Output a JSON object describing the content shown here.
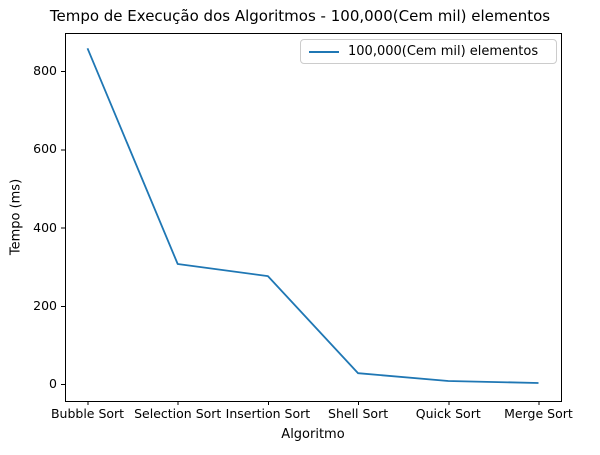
{
  "chart_data": {
    "type": "line",
    "title": "Tempo de Execução dos Algoritmos - 100,000(Cem mil) elementos",
    "xlabel": "Algoritmo",
    "ylabel": "Tempo (ms)",
    "categories": [
      "Bubble Sort",
      "Selection Sort",
      "Insertion Sort",
      "Shell Sort",
      "Quick Sort",
      "Merge Sort"
    ],
    "series": [
      {
        "name": "100,000(Cem mil) elementos",
        "values": [
          858,
          307,
          276,
          28,
          8,
          3
        ],
        "color": "#1f77b4"
      }
    ],
    "yticks": [
      0,
      200,
      400,
      600,
      800
    ],
    "ylim": [
      -43,
      897
    ],
    "xlim": [
      -0.25,
      5.25
    ],
    "grid": false,
    "legend_position": "upper right",
    "background_color": "#ffffff",
    "spine_color": "#000000",
    "text_color": "#000000"
  }
}
